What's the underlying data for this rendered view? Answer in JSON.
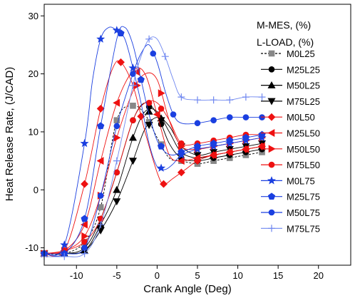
{
  "chart_data": {
    "type": "line",
    "xlabel": "Crank Angle (Deg)",
    "ylabel": "Heat Release Rate, (J/CAD)",
    "xlim": [
      -14,
      24
    ],
    "ylim": [
      -13,
      32
    ],
    "xticks": [
      -10,
      -5,
      0,
      5,
      10,
      15,
      20
    ],
    "yticks": [
      -10,
      0,
      10,
      20,
      30
    ],
    "legend_header": [
      "M-MES, (%)",
      "L-LOAD, (%)"
    ],
    "legend_position": "right",
    "grid": false,
    "series": [
      {
        "name": "M0L25",
        "color": "#000000",
        "dash": true,
        "marker": "square",
        "marker_color": "#888888",
        "x": [
          -14,
          -11.5,
          -9,
          -7,
          -5,
          -3,
          -1.5,
          0,
          1.5,
          3,
          5,
          7,
          9,
          11,
          13
        ],
        "y": [
          -11,
          -11,
          -9,
          -3,
          12,
          14.5,
          13,
          9,
          5.5,
          5,
          4.5,
          5,
          5.5,
          6,
          6.5
        ],
        "marker_x": [
          -14,
          -11.5,
          -9,
          -7,
          -5,
          -3,
          -1,
          0.5,
          3,
          5,
          7,
          9,
          11,
          13
        ]
      },
      {
        "name": "M25L25",
        "color": "#000000",
        "dash": false,
        "marker": "circle",
        "marker_color": "#000000",
        "x": [
          -14,
          -11.5,
          -9,
          -7,
          -5,
          -3,
          -1.5,
          0,
          1.5,
          3,
          5,
          7,
          9,
          11,
          13
        ],
        "y": [
          -11,
          -11,
          -10,
          -5,
          3,
          12,
          15,
          13,
          8,
          5.5,
          5,
          5.5,
          6,
          6.5,
          7
        ],
        "marker_x": [
          -14,
          -11.5,
          -9,
          -7,
          -5,
          -3,
          -1,
          0.5,
          3,
          5,
          7,
          9,
          11,
          13
        ]
      },
      {
        "name": "M50L25",
        "color": "#000000",
        "dash": false,
        "marker": "triangle",
        "marker_color": "#000000",
        "x": [
          -14,
          -11.5,
          -9,
          -7,
          -5,
          -3,
          -1.5,
          0,
          1.5,
          3,
          5,
          7,
          9,
          11,
          13
        ],
        "y": [
          -11,
          -11,
          -10.5,
          -6,
          0,
          9,
          13.5,
          13.5,
          10,
          6.5,
          5.5,
          6,
          6.5,
          7,
          7.5
        ],
        "marker_x": [
          -14,
          -11.5,
          -9,
          -7,
          -5,
          -3,
          -1,
          0.5,
          3,
          5,
          7,
          9,
          11,
          13
        ]
      },
      {
        "name": "M75L25",
        "color": "#000000",
        "dash": false,
        "marker": "triangle-down",
        "marker_color": "#000000",
        "x": [
          -14,
          -11.5,
          -9,
          -7,
          -5,
          -3,
          -1.5,
          0,
          1.5,
          3,
          5,
          7,
          9,
          11,
          13
        ],
        "y": [
          -11,
          -11,
          -10.5,
          -7,
          -2,
          5,
          10.5,
          12.5,
          11,
          7.5,
          6,
          6.5,
          7,
          7.5,
          8
        ],
        "marker_x": [
          -14,
          -11.5,
          -9,
          -7,
          -5,
          -3,
          -1,
          0.5,
          3,
          5,
          7,
          9,
          11,
          13
        ]
      },
      {
        "name": "M0L50",
        "color": "#ee1111",
        "dash": false,
        "marker": "diamond",
        "marker_color": "#ee1111",
        "x": [
          -14,
          -11.5,
          -9,
          -7,
          -5.5,
          -4.5,
          -3,
          -1.5,
          0,
          0.8,
          2,
          3.5,
          5,
          7,
          9,
          11,
          13
        ],
        "y": [
          -11,
          -10.5,
          1,
          14,
          21,
          22,
          18,
          10,
          3,
          1,
          2,
          3.5,
          5,
          6,
          6.5,
          7,
          7.5
        ],
        "marker_x": [
          -14,
          -11.5,
          -9,
          -7,
          -4.5,
          -2,
          0.8,
          3,
          5,
          7,
          9,
          11,
          13
        ]
      },
      {
        "name": "M25L50",
        "color": "#ee1111",
        "dash": false,
        "marker": "triangle-left",
        "marker_color": "#ee1111",
        "x": [
          -14,
          -11.5,
          -9,
          -7,
          -5,
          -3,
          -1.5,
          0,
          1.5,
          3,
          5,
          7,
          9,
          11,
          13
        ],
        "y": [
          -11,
          -10.5,
          -6,
          5,
          15,
          20.5,
          20,
          13,
          6,
          5,
          5.5,
          6,
          6.5,
          7,
          7.5
        ],
        "marker_x": [
          -14,
          -11.5,
          -9,
          -7,
          -5,
          -2.5,
          0,
          3,
          5,
          7,
          9,
          11,
          13
        ]
      },
      {
        "name": "M50L50",
        "color": "#ee1111",
        "dash": false,
        "marker": "triangle-right",
        "marker_color": "#ee1111",
        "x": [
          -14,
          -11.5,
          -9,
          -7,
          -5,
          -3,
          -1.5,
          0,
          1.5,
          3,
          5,
          7,
          9,
          11,
          13
        ],
        "y": [
          -11,
          -10.5,
          -8,
          -1,
          9,
          17,
          20,
          19,
          12,
          7.5,
          7,
          7.5,
          8,
          8.5,
          9
        ],
        "marker_x": [
          -14,
          -11.5,
          -9,
          -7,
          -5,
          -2.5,
          0.5,
          3,
          5,
          7,
          9,
          11,
          13
        ]
      },
      {
        "name": "M75L50",
        "color": "#ee1111",
        "dash": false,
        "marker": "circle",
        "marker_color": "#ee1111",
        "x": [
          -14,
          -11.5,
          -9,
          -7,
          -5,
          -3,
          -1.5,
          0,
          1.5,
          3,
          5,
          7,
          9,
          11,
          13
        ],
        "y": [
          -11,
          -10.5,
          -9,
          -5,
          3,
          12,
          15,
          15,
          12,
          8,
          8,
          8.5,
          9,
          9.5,
          9.5
        ],
        "marker_x": [
          -14,
          -11.5,
          -9,
          -7,
          -5,
          -3,
          -1,
          0.5,
          3,
          5,
          7,
          9,
          11,
          13
        ]
      },
      {
        "name": "M0L75",
        "color": "#1a3fe0",
        "dash": false,
        "marker": "star",
        "marker_color": "#1a3fe0",
        "x": [
          -14,
          -11.5,
          -9,
          -8,
          -7,
          -6,
          -5,
          -4,
          -3,
          -2,
          -1,
          0,
          1,
          2,
          3,
          5,
          7,
          9,
          11,
          13
        ],
        "y": [
          -11,
          -9.5,
          8,
          19,
          26,
          28,
          27.5,
          26,
          21,
          15,
          8,
          4,
          3.5,
          4.5,
          6,
          7,
          7.5,
          8,
          8.5,
          9
        ],
        "marker_x": [
          -14,
          -11.5,
          -9,
          -7,
          -5,
          -3,
          0.5,
          3,
          5,
          7,
          9,
          11,
          13
        ]
      },
      {
        "name": "M25L75",
        "color": "#1a3fe0",
        "dash": false,
        "marker": "pentagon",
        "marker_color": "#1a3fe0",
        "x": [
          -14,
          -11.5,
          -9,
          -7,
          -5,
          -4,
          -3,
          -2,
          -1,
          0,
          1,
          2,
          3,
          5,
          7,
          9,
          11,
          13
        ],
        "y": [
          -11,
          -11,
          -5,
          11,
          26,
          28,
          25,
          19,
          13,
          8.5,
          6.5,
          6,
          6.5,
          7.5,
          8,
          8.5,
          9,
          9.5
        ],
        "marker_x": [
          -14,
          -11.5,
          -9,
          -7,
          -4.5,
          -2,
          0.5,
          3,
          5,
          7,
          9,
          11,
          13
        ]
      },
      {
        "name": "M50L75",
        "color": "#1a3fe0",
        "dash": false,
        "marker": "circle",
        "marker_color": "#1a3fe0",
        "x": [
          -14,
          -11.5,
          -9,
          -7,
          -5,
          -3,
          -2,
          -1,
          0,
          1,
          2,
          3,
          5,
          7,
          9,
          11,
          13
        ],
        "y": [
          -11,
          -11,
          -10,
          -1,
          11,
          20,
          23.5,
          25,
          22,
          17,
          13,
          11.5,
          11.5,
          12,
          12.5,
          12.5,
          12.5
        ],
        "marker_x": [
          -14,
          -11.5,
          -9,
          -7,
          -5,
          -3,
          -0.5,
          2,
          5,
          7,
          9,
          11,
          13
        ]
      },
      {
        "name": "M75L75",
        "color": "#6f87f0",
        "dash": false,
        "marker": "plus",
        "marker_color": "#6f87f0",
        "x": [
          -14,
          -11.5,
          -9,
          -7,
          -5,
          -3,
          -2,
          -1,
          0,
          1,
          2,
          3,
          5,
          7,
          9,
          11,
          13
        ],
        "y": [
          -11.5,
          -11.5,
          -11,
          -6,
          5,
          18,
          23,
          26,
          26,
          23,
          19,
          16,
          15.5,
          15.5,
          15.5,
          16,
          16
        ],
        "marker_x": [
          -14,
          -11.5,
          -9,
          -7,
          -5,
          -3,
          -1,
          1,
          3,
          5,
          7,
          9,
          11,
          13
        ]
      }
    ]
  }
}
